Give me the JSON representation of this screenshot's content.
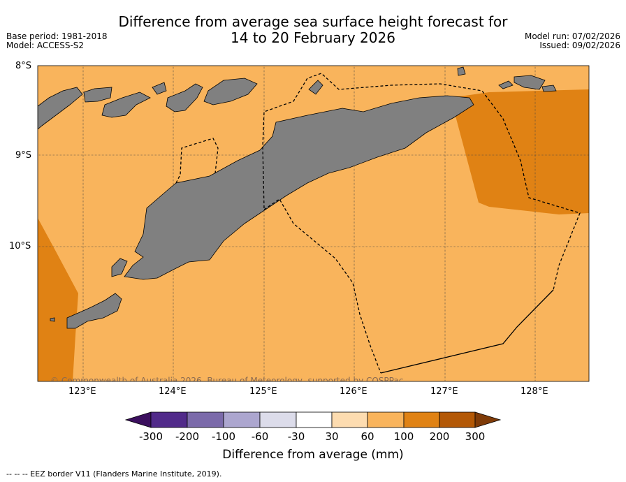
{
  "title": {
    "line1": "Difference from average sea surface height forecast for",
    "line2": "14 to 20 February 2026"
  },
  "meta": {
    "base_period": "Base period: 1981-2018",
    "model": "Model: ACCESS-S2",
    "model_run": "Model run: 07/02/2026",
    "issued": "Issued: 09/02/2026"
  },
  "axes": {
    "lat_labels": [
      "8°S",
      "9°S",
      "10°S"
    ],
    "lon_labels": [
      "123°E",
      "124°E",
      "125°E",
      "126°E",
      "127°E",
      "128°E"
    ],
    "lon_range": [
      122.5,
      128.6
    ],
    "lat_range": [
      -8.0,
      -11.5
    ]
  },
  "credit": "© Commonwealth of Australia 2026, Bureau of Meteorology, supported by COSPPac",
  "colorbar": {
    "ticks": [
      "-300",
      "-200",
      "-100",
      "-60",
      "-30",
      "30",
      "60",
      "100",
      "200",
      "300"
    ],
    "colors": [
      "#3b0f5e",
      "#512a8a",
      "#7b6aaa",
      "#aca6cf",
      "#dcdcea",
      "#ffffff",
      "#fddcb0",
      "#f9b45c",
      "#e08214",
      "#b35806",
      "#7f3b08"
    ],
    "label": "Difference from average (mm)"
  },
  "legend": "--  --  -- EEZ border V11 (Flanders Marine Institute, 2019).",
  "colors": {
    "ocean_main": "#f9b45c",
    "ocean_high": "#e08214",
    "land": "#808080"
  }
}
